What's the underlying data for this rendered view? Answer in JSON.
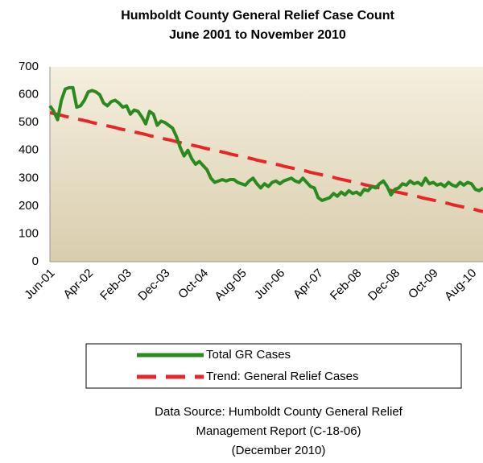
{
  "chart_data": {
    "type": "line",
    "title": "Humboldt County General Relief Case Count",
    "subtitle": "June 2001 to November 2010",
    "categories": [
      "Jun-01",
      null,
      null,
      null,
      null,
      null,
      null,
      null,
      null,
      null,
      "Apr-02",
      null,
      null,
      null,
      null,
      null,
      null,
      null,
      null,
      null,
      "Feb-03",
      null,
      null,
      null,
      null,
      null,
      null,
      null,
      null,
      null,
      "Dec-03",
      null,
      null,
      null,
      null,
      null,
      null,
      null,
      null,
      null,
      "Oct-04",
      null,
      null,
      null,
      null,
      null,
      null,
      null,
      null,
      null,
      "Aug-05",
      null,
      null,
      null,
      null,
      null,
      null,
      null,
      null,
      null,
      "Jun-06",
      null,
      null,
      null,
      null,
      null,
      null,
      null,
      null,
      null,
      "Apr-07",
      null,
      null,
      null,
      null,
      null,
      null,
      null,
      null,
      null,
      "Feb-08",
      null,
      null,
      null,
      null,
      null,
      null,
      null,
      null,
      null,
      "Dec-08",
      null,
      null,
      null,
      null,
      null,
      null,
      null,
      null,
      null,
      "Oct-09",
      null,
      null,
      null,
      null,
      null,
      null,
      null,
      null,
      null,
      "Aug-10",
      null,
      null,
      null
    ],
    "series": [
      {
        "name": "Total GR Cases",
        "color": "#2a8a1f",
        "dash": false,
        "values": [
          560,
          540,
          510,
          580,
          620,
          625,
          625,
          555,
          560,
          580,
          610,
          615,
          610,
          600,
          570,
          560,
          575,
          580,
          570,
          555,
          560,
          530,
          545,
          540,
          520,
          495,
          540,
          530,
          490,
          505,
          500,
          490,
          480,
          450,
          410,
          380,
          400,
          370,
          350,
          360,
          345,
          330,
          300,
          285,
          290,
          295,
          290,
          295,
          295,
          285,
          280,
          275,
          290,
          300,
          280,
          265,
          280,
          270,
          285,
          290,
          280,
          290,
          295,
          300,
          290,
          285,
          300,
          285,
          270,
          265,
          230,
          220,
          225,
          230,
          245,
          235,
          250,
          240,
          255,
          245,
          250,
          240,
          260,
          255,
          270,
          265,
          280,
          290,
          270,
          240,
          260,
          265,
          280,
          275,
          290,
          280,
          285,
          275,
          300,
          280,
          285,
          275,
          280,
          270,
          285,
          275,
          270,
          285,
          275,
          285,
          280,
          260,
          255,
          265
        ]
      },
      {
        "name": "Trend: General Relief Cases",
        "color": "#e8262a",
        "dash": true,
        "values": [
          535,
          532,
          529,
          526,
          522,
          519,
          516,
          513,
          510,
          507,
          504,
          500,
          497,
          494,
          491,
          488,
          485,
          482,
          478,
          475,
          472,
          469,
          466,
          463,
          460,
          457,
          453,
          450,
          447,
          444,
          441,
          438,
          435,
          431,
          428,
          425,
          422,
          419,
          416,
          413,
          409,
          406,
          403,
          400,
          397,
          394,
          391,
          387,
          384,
          381,
          378,
          375,
          372,
          369,
          365,
          362,
          359,
          356,
          353,
          350,
          347,
          343,
          340,
          337,
          334,
          331,
          328,
          325,
          321,
          318,
          315,
          312,
          309,
          306,
          303,
          299,
          296,
          293,
          290,
          287,
          284,
          281,
          277,
          274,
          271,
          268,
          265,
          262,
          259,
          256,
          252,
          249,
          246,
          243,
          240,
          237,
          234,
          230,
          227,
          224,
          221,
          218,
          215,
          212,
          209,
          205,
          202,
          199,
          196,
          193,
          190,
          187,
          183,
          180
        ]
      }
    ],
    "ylim": [
      0,
      700
    ],
    "yticks": [
      0,
      100,
      200,
      300,
      400,
      500,
      600,
      700
    ],
    "grid": false,
    "annotations": [
      "Data Source: Humboldt County General Relief",
      "Management Report (C-18-06)",
      "(December 2010)"
    ]
  }
}
